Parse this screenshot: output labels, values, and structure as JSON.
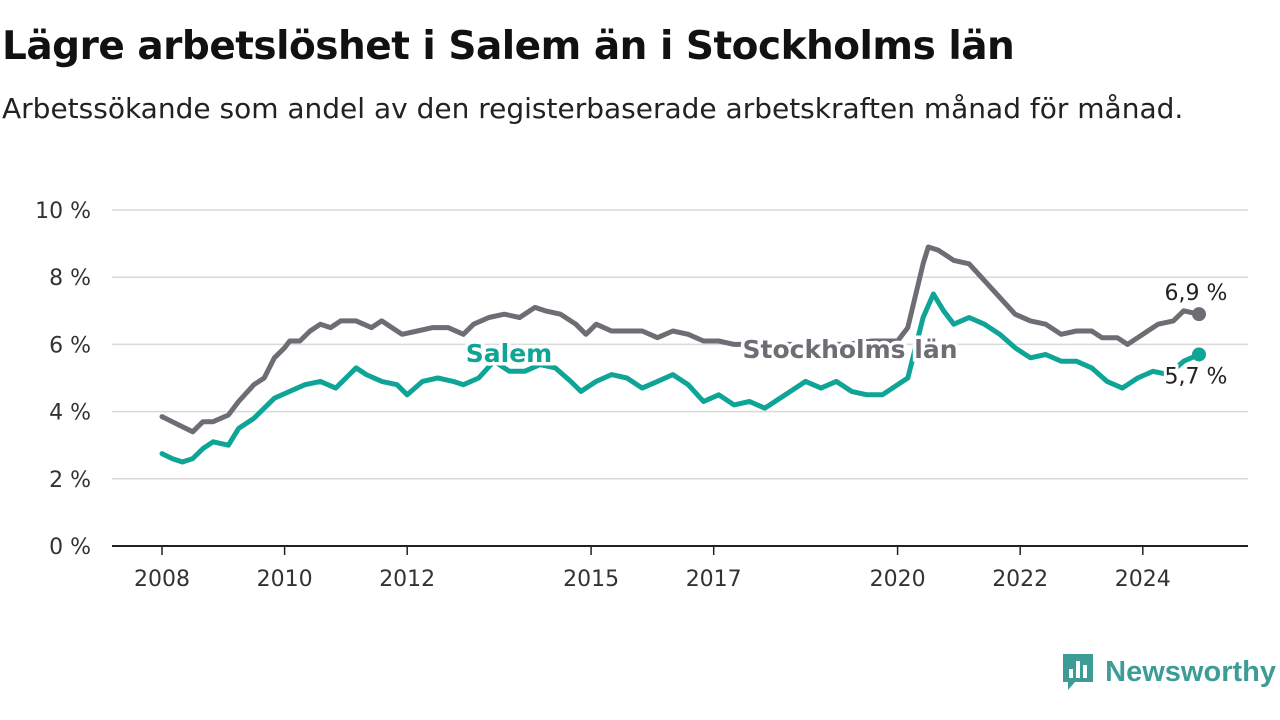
{
  "title": "Lägre arbetslöshet i Salem än i Stockholms län",
  "subtitle": "Arbetssökande som andel av den registerbaserade arbetskraften månad för månad.",
  "brand": {
    "name": "Newsworthy",
    "icon": "newsworthy-logo-icon",
    "color": "#3d9c96"
  },
  "chart_data": {
    "type": "line",
    "x_ticks": [
      "2008",
      "2010",
      "2012",
      "2015",
      "2017",
      "2020",
      "2022",
      "2024"
    ],
    "y_ticks": [
      "0 %",
      "2 %",
      "4 %",
      "6 %",
      "8 %",
      "10 %"
    ],
    "ylim": [
      0,
      10
    ],
    "grid": "horizontal",
    "series": [
      {
        "name": "Stockholms län",
        "color": "#6e6d73",
        "end_label": "6,9 %",
        "points": [
          [
            "2008-01",
            3.85
          ],
          [
            "2008-03",
            3.7
          ],
          [
            "2008-05",
            3.55
          ],
          [
            "2008-07",
            3.4
          ],
          [
            "2008-09",
            3.7
          ],
          [
            "2008-11",
            3.7
          ],
          [
            "2009-02",
            3.9
          ],
          [
            "2009-04",
            4.3
          ],
          [
            "2009-07",
            4.8
          ],
          [
            "2009-09",
            5.0
          ],
          [
            "2009-11",
            5.6
          ],
          [
            "2010-01",
            5.9
          ],
          [
            "2010-02",
            6.1
          ],
          [
            "2010-04",
            6.1
          ],
          [
            "2010-06",
            6.4
          ],
          [
            "2010-08",
            6.6
          ],
          [
            "2010-10",
            6.5
          ],
          [
            "2010-12",
            6.7
          ],
          [
            "2011-03",
            6.7
          ],
          [
            "2011-06",
            6.5
          ],
          [
            "2011-08",
            6.7
          ],
          [
            "2011-10",
            6.5
          ],
          [
            "2011-12",
            6.3
          ],
          [
            "2012-03",
            6.4
          ],
          [
            "2012-06",
            6.5
          ],
          [
            "2012-09",
            6.5
          ],
          [
            "2012-12",
            6.3
          ],
          [
            "2013-02",
            6.6
          ],
          [
            "2013-05",
            6.8
          ],
          [
            "2013-08",
            6.9
          ],
          [
            "2013-11",
            6.8
          ],
          [
            "2014-02",
            7.1
          ],
          [
            "2014-04",
            7.0
          ],
          [
            "2014-07",
            6.9
          ],
          [
            "2014-10",
            6.6
          ],
          [
            "2014-12",
            6.3
          ],
          [
            "2015-02",
            6.6
          ],
          [
            "2015-05",
            6.4
          ],
          [
            "2015-08",
            6.4
          ],
          [
            "2015-11",
            6.4
          ],
          [
            "2016-02",
            6.2
          ],
          [
            "2016-05",
            6.4
          ],
          [
            "2016-08",
            6.3
          ],
          [
            "2016-11",
            6.1
          ],
          [
            "2017-02",
            6.1
          ],
          [
            "2017-05",
            6.0
          ],
          [
            "2017-09",
            6.0
          ],
          [
            "2018-01",
            6.0
          ],
          [
            "2018-05",
            6.0
          ],
          [
            "2018-10",
            6.0
          ],
          [
            "2019-03",
            6.0
          ],
          [
            "2019-08",
            6.1
          ],
          [
            "2020-01",
            6.1
          ],
          [
            "2020-03",
            6.5
          ],
          [
            "2020-06",
            8.4
          ],
          [
            "2020-07",
            8.9
          ],
          [
            "2020-09",
            8.8
          ],
          [
            "2020-12",
            8.5
          ],
          [
            "2021-03",
            8.4
          ],
          [
            "2021-06",
            7.9
          ],
          [
            "2021-09",
            7.4
          ],
          [
            "2021-12",
            6.9
          ],
          [
            "2022-03",
            6.7
          ],
          [
            "2022-06",
            6.6
          ],
          [
            "2022-09",
            6.3
          ],
          [
            "2022-12",
            6.4
          ],
          [
            "2023-03",
            6.4
          ],
          [
            "2023-05",
            6.2
          ],
          [
            "2023-08",
            6.2
          ],
          [
            "2023-10",
            6.0
          ],
          [
            "2024-01",
            6.3
          ],
          [
            "2024-04",
            6.6
          ],
          [
            "2024-07",
            6.7
          ],
          [
            "2024-09",
            7.0
          ],
          [
            "2024-12",
            6.9
          ]
        ]
      },
      {
        "name": "Salem",
        "color": "#0ea596",
        "end_label": "5,7 %",
        "points": [
          [
            "2008-01",
            2.75
          ],
          [
            "2008-03",
            2.6
          ],
          [
            "2008-05",
            2.5
          ],
          [
            "2008-07",
            2.6
          ],
          [
            "2008-09",
            2.9
          ],
          [
            "2008-11",
            3.1
          ],
          [
            "2009-02",
            3.0
          ],
          [
            "2009-04",
            3.5
          ],
          [
            "2009-07",
            3.8
          ],
          [
            "2009-09",
            4.1
          ],
          [
            "2009-11",
            4.4
          ],
          [
            "2010-02",
            4.6
          ],
          [
            "2010-05",
            4.8
          ],
          [
            "2010-08",
            4.9
          ],
          [
            "2010-11",
            4.7
          ],
          [
            "2011-01",
            5.0
          ],
          [
            "2011-03",
            5.3
          ],
          [
            "2011-05",
            5.1
          ],
          [
            "2011-08",
            4.9
          ],
          [
            "2011-11",
            4.8
          ],
          [
            "2012-01",
            4.5
          ],
          [
            "2012-04",
            4.9
          ],
          [
            "2012-07",
            5.0
          ],
          [
            "2012-10",
            4.9
          ],
          [
            "2012-12",
            4.8
          ],
          [
            "2013-03",
            5.0
          ],
          [
            "2013-06",
            5.5
          ],
          [
            "2013-09",
            5.2
          ],
          [
            "2013-12",
            5.2
          ],
          [
            "2014-03",
            5.4
          ],
          [
            "2014-06",
            5.3
          ],
          [
            "2014-09",
            4.9
          ],
          [
            "2014-11",
            4.6
          ],
          [
            "2015-02",
            4.9
          ],
          [
            "2015-05",
            5.1
          ],
          [
            "2015-08",
            5.0
          ],
          [
            "2015-11",
            4.7
          ],
          [
            "2016-02",
            4.9
          ],
          [
            "2016-05",
            5.1
          ],
          [
            "2016-08",
            4.8
          ],
          [
            "2016-11",
            4.3
          ],
          [
            "2017-02",
            4.5
          ],
          [
            "2017-05",
            4.2
          ],
          [
            "2017-08",
            4.3
          ],
          [
            "2017-11",
            4.1
          ],
          [
            "2018-01",
            4.3
          ],
          [
            "2018-04",
            4.6
          ],
          [
            "2018-07",
            4.9
          ],
          [
            "2018-10",
            4.7
          ],
          [
            "2019-01",
            4.9
          ],
          [
            "2019-04",
            4.6
          ],
          [
            "2019-07",
            4.5
          ],
          [
            "2019-10",
            4.5
          ],
          [
            "2020-01",
            4.8
          ],
          [
            "2020-03",
            5.0
          ],
          [
            "2020-06",
            6.8
          ],
          [
            "2020-08",
            7.5
          ],
          [
            "2020-10",
            7.0
          ],
          [
            "2020-12",
            6.6
          ],
          [
            "2021-03",
            6.8
          ],
          [
            "2021-06",
            6.6
          ],
          [
            "2021-09",
            6.3
          ],
          [
            "2021-12",
            5.9
          ],
          [
            "2022-03",
            5.6
          ],
          [
            "2022-06",
            5.7
          ],
          [
            "2022-09",
            5.5
          ],
          [
            "2022-12",
            5.5
          ],
          [
            "2023-03",
            5.3
          ],
          [
            "2023-06",
            4.9
          ],
          [
            "2023-09",
            4.7
          ],
          [
            "2023-12",
            5.0
          ],
          [
            "2024-03",
            5.2
          ],
          [
            "2024-06",
            5.1
          ],
          [
            "2024-09",
            5.5
          ],
          [
            "2024-12",
            5.7
          ]
        ]
      }
    ]
  }
}
